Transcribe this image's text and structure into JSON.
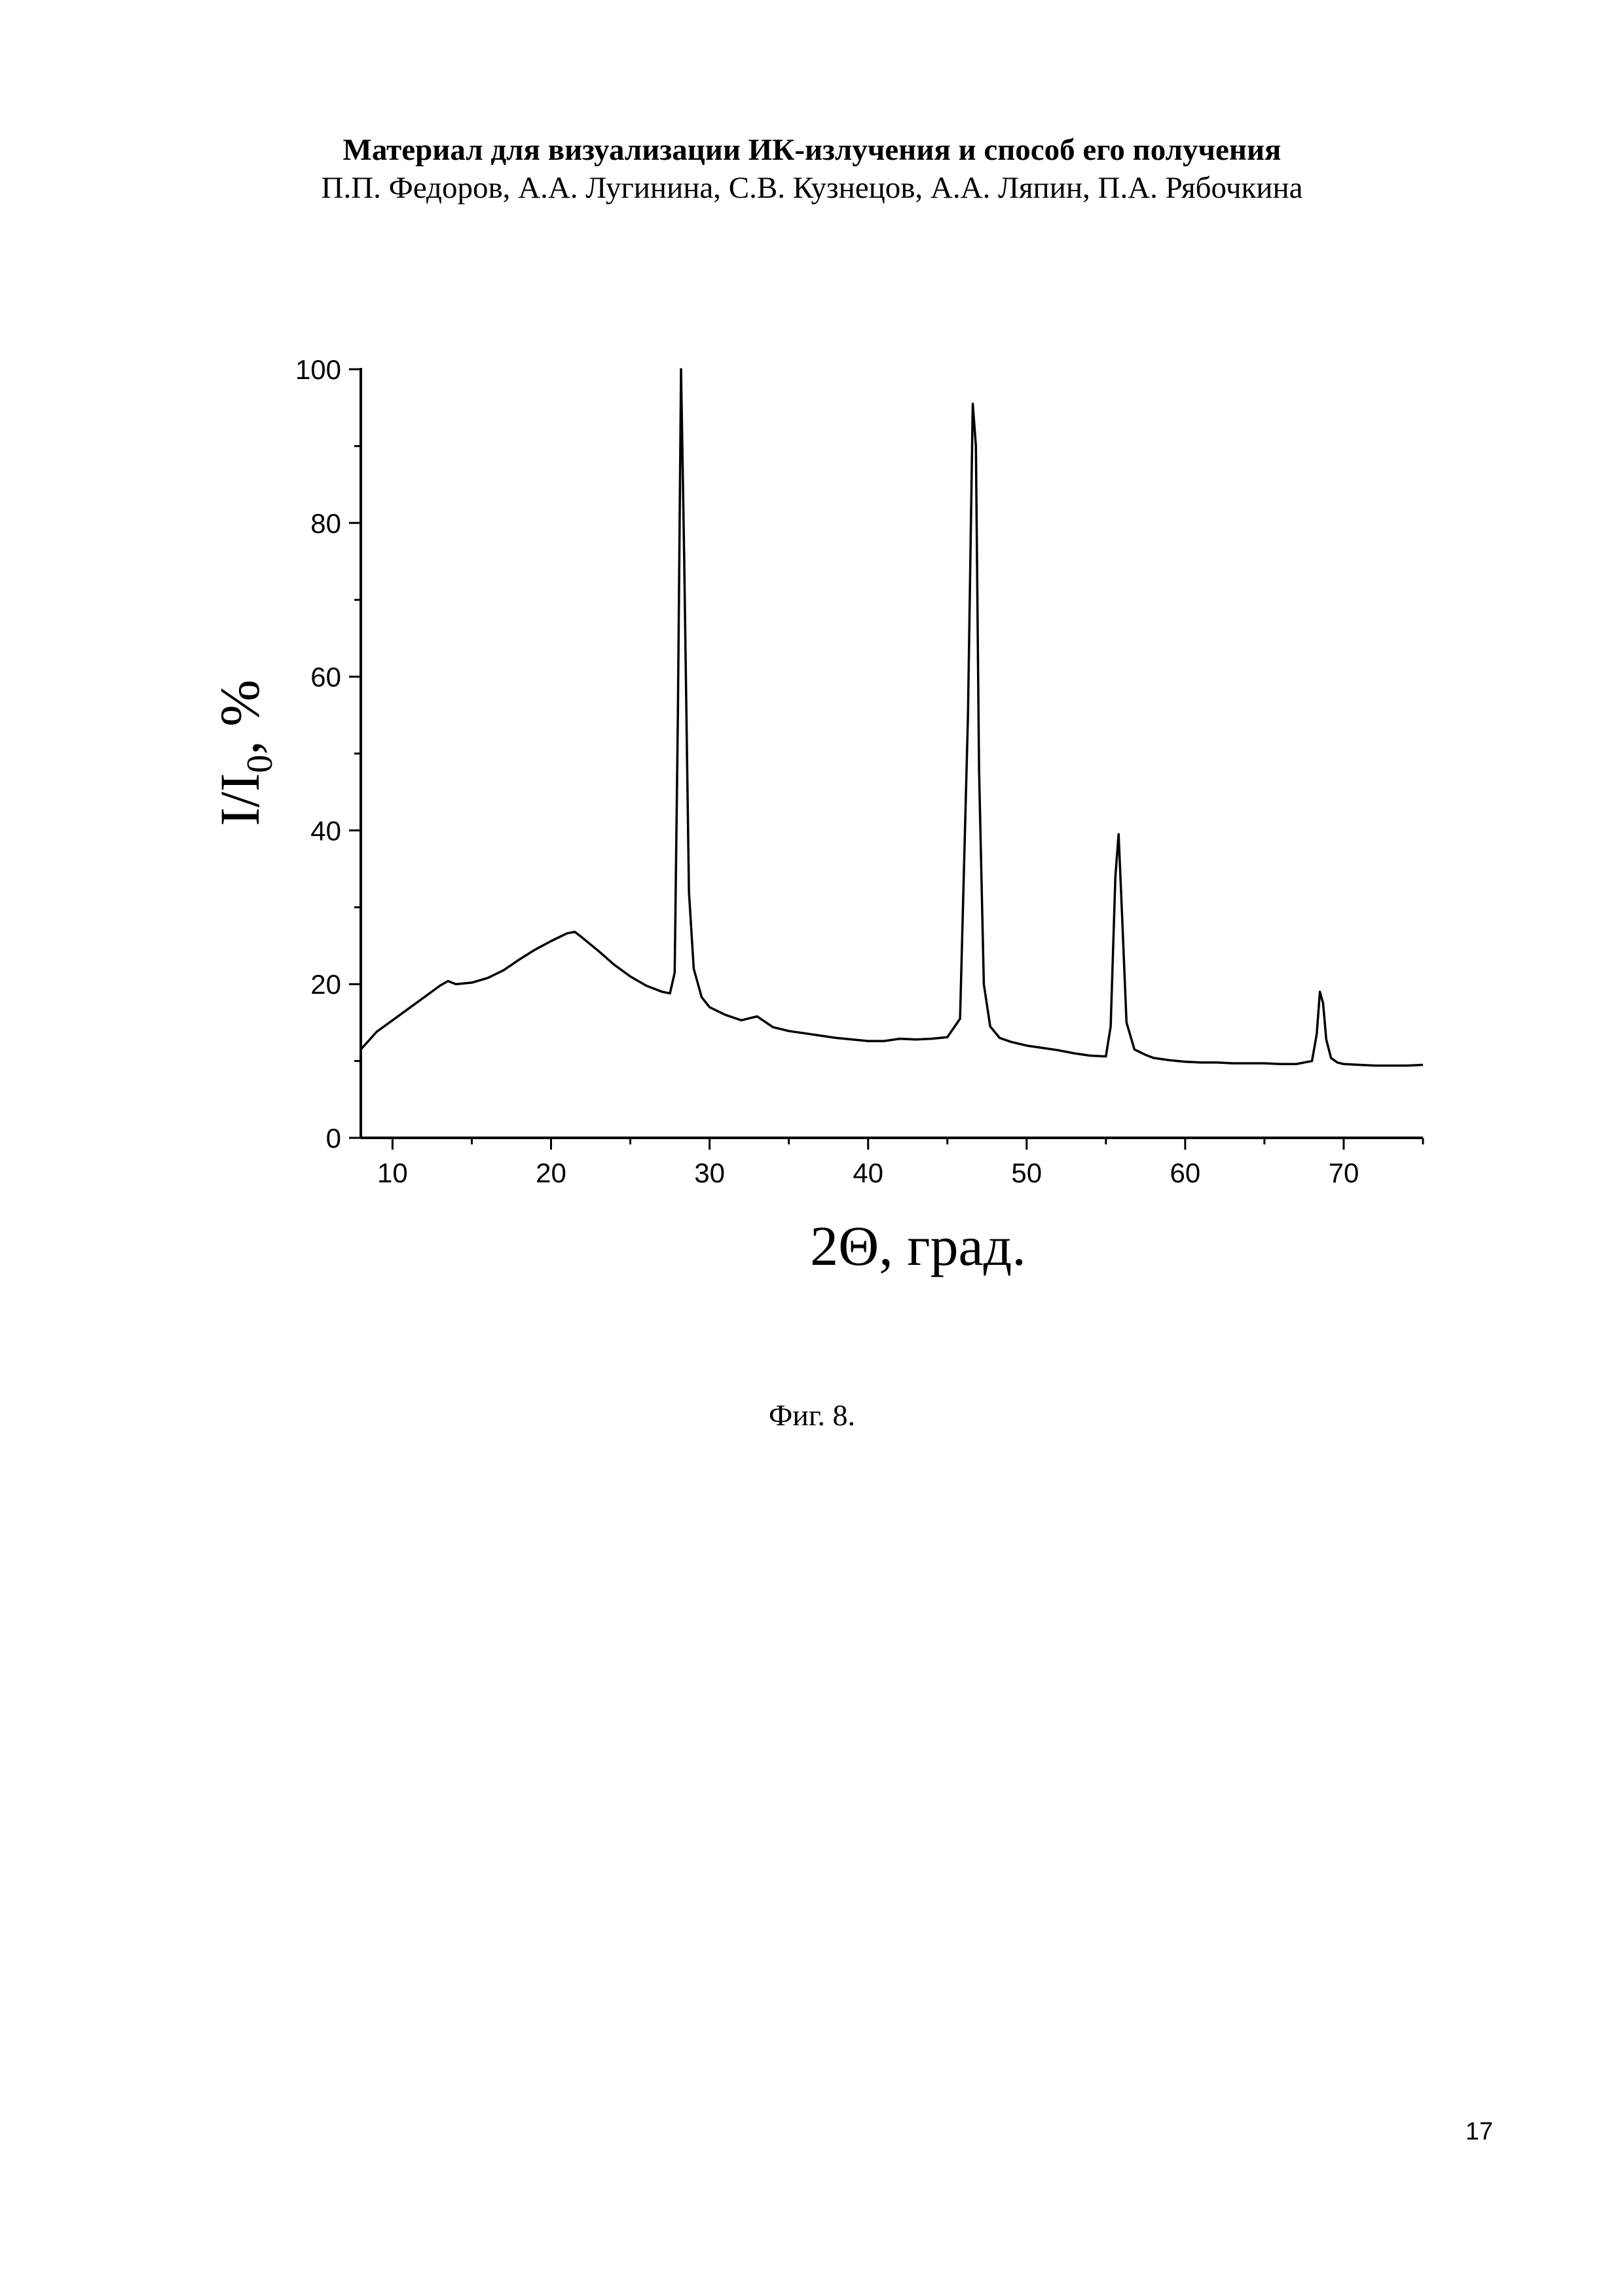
{
  "document": {
    "title": "Материал для визуализации ИК-излучения и способ его получения",
    "authors": "П.П. Федоров, А.А. Лугинина, С.В. Кузнецов, А.А. Ляпин, П.А. Рябочкина",
    "figure_caption": "Фиг. 8.",
    "page_number": "17"
  },
  "chart_data": {
    "type": "line",
    "xlabel": "2Θ, град.",
    "ylabel": "I/I",
    "ylabel_subscript": "0",
    "ylabel_suffix": ", %",
    "xlim": [
      8,
      75
    ],
    "ylim": [
      0,
      100
    ],
    "xticks": [
      10,
      20,
      30,
      40,
      50,
      60,
      70
    ],
    "yticks": [
      0,
      20,
      40,
      60,
      80,
      100
    ],
    "grid": false,
    "line_color": "#000000",
    "series": [
      {
        "x": [
          8,
          9,
          10,
          11,
          12,
          13,
          13.5,
          14,
          15,
          16,
          17,
          18,
          19,
          20,
          21,
          21.5,
          22,
          23,
          24,
          25,
          26,
          27,
          27.5,
          27.8,
          28.0,
          28.2,
          28.4,
          28.7,
          29.0,
          29.5,
          30,
          31,
          32,
          33,
          34,
          35,
          36,
          37,
          38,
          39,
          40,
          41,
          42,
          43,
          44,
          45,
          45.8,
          46.3,
          46.6,
          46.8,
          47.0,
          47.3,
          47.7,
          48.3,
          49,
          50,
          51,
          52,
          53,
          54,
          55,
          55.3,
          55.6,
          55.8,
          56.0,
          56.3,
          56.8,
          57.5,
          58,
          59,
          60,
          61,
          62,
          63,
          64,
          65,
          66,
          67,
          68,
          68.3,
          68.5,
          68.7,
          68.9,
          69.2,
          69.6,
          70,
          71,
          72,
          73,
          74,
          75
        ],
        "y": [
          11.5,
          13.8,
          15.3,
          16.8,
          18.3,
          19.8,
          20.4,
          20.0,
          20.2,
          20.8,
          21.8,
          23.2,
          24.5,
          25.6,
          26.6,
          26.8,
          26.0,
          24.3,
          22.5,
          21.0,
          19.8,
          19.0,
          18.8,
          21.5,
          55.0,
          100.0,
          75.0,
          32.0,
          22.0,
          18.3,
          17.0,
          16.0,
          15.3,
          15.8,
          14.4,
          13.9,
          13.6,
          13.3,
          13.0,
          12.8,
          12.6,
          12.6,
          12.9,
          12.8,
          12.9,
          13.1,
          15.5,
          55.0,
          95.5,
          90.0,
          48.0,
          20.0,
          14.5,
          13.0,
          12.5,
          12.0,
          11.7,
          11.4,
          11.0,
          10.7,
          10.6,
          14.5,
          34.0,
          39.5,
          30.0,
          15.0,
          11.5,
          10.8,
          10.4,
          10.1,
          9.9,
          9.8,
          9.8,
          9.7,
          9.7,
          9.7,
          9.6,
          9.6,
          10.0,
          13.5,
          19.0,
          17.5,
          12.8,
          10.4,
          9.8,
          9.6,
          9.5,
          9.4,
          9.4,
          9.4,
          9.5
        ]
      }
    ]
  }
}
